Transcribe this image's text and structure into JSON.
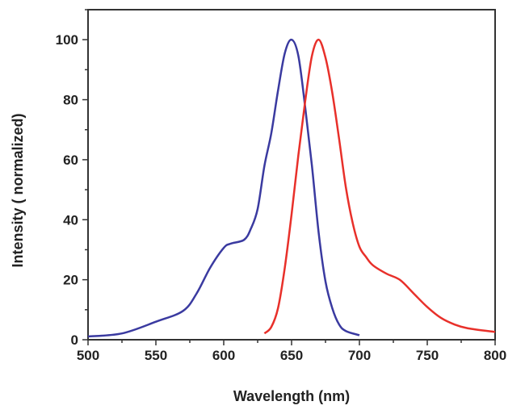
{
  "chart_data": {
    "type": "line",
    "title": "",
    "xlabel": "Wavelength (nm)",
    "ylabel": "Intensity ( normalized)",
    "xlim": [
      500,
      800
    ],
    "ylim": [
      0,
      110
    ],
    "xticks": [
      500,
      550,
      600,
      650,
      700,
      750,
      800
    ],
    "yticks": [
      0,
      20,
      40,
      60,
      80,
      100
    ],
    "grid": false,
    "legend": "none",
    "series": [
      {
        "color": "#3a3aa0",
        "x": [
          500,
          525,
          550,
          570,
          580,
          590,
          600,
          605,
          615,
          620,
          625,
          630,
          635,
          640,
          645,
          650,
          655,
          660,
          665,
          670,
          675,
          680,
          685,
          690,
          700
        ],
        "y": [
          1.1,
          2.1,
          6,
          9.6,
          15.4,
          24,
          30.6,
          32,
          33.3,
          37,
          43.6,
          58,
          68.7,
          83,
          95.5,
          100,
          94.6,
          77.6,
          58,
          35.5,
          19.4,
          10.5,
          5.1,
          2.9,
          1.5
        ]
      },
      {
        "color": "#e8302a",
        "x": [
          630,
          635,
          640,
          645,
          650,
          655,
          660,
          665,
          670,
          675,
          680,
          685,
          690,
          695,
          700,
          705,
          710,
          720,
          730,
          740,
          750,
          760,
          770,
          780,
          800
        ],
        "y": [
          2.1,
          4.2,
          10.5,
          24,
          41.8,
          61.5,
          79.4,
          94.6,
          100,
          94,
          82.3,
          67,
          50.8,
          39,
          31,
          27.5,
          24.8,
          22,
          19.9,
          15.4,
          10.9,
          7.3,
          5.1,
          3.8,
          2.6
        ]
      }
    ]
  }
}
